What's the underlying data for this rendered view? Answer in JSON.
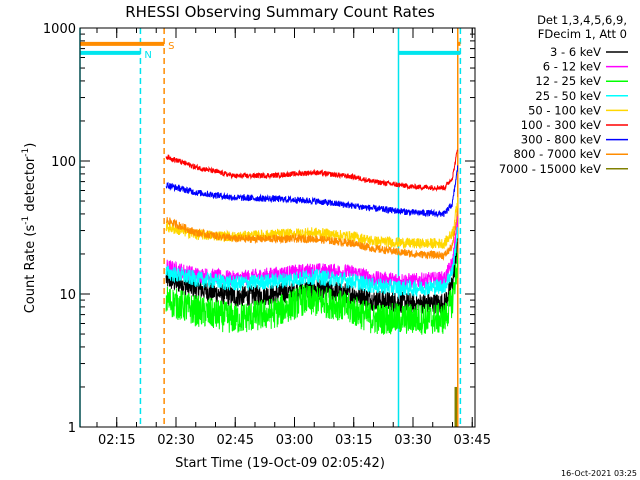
{
  "chart_data": {
    "type": "line",
    "title": "RHESSI Observing Summary Count Rates",
    "xlabel": "Start Time (19-Oct-09 02:05:42)",
    "ylabel": "Count Rate (s",
    "ylabel_exp": "-1",
    "ylabel_tail": " detector",
    "ylabel_close": ")",
    "yscale": "log",
    "ylim": [
      1,
      1000
    ],
    "xlim": [
      "02:05:42",
      "03:45:42"
    ],
    "x_ticks": [
      "02:15",
      "02:30",
      "02:45",
      "03:00",
      "03:15",
      "03:30",
      "03:45"
    ],
    "y_ticks": [
      "1",
      "10",
      "100",
      "1000"
    ],
    "legend_header": [
      "Det 1,3,4,5,6,9,",
      "FDecim 1, Att 0"
    ],
    "legend_position": "outside-right",
    "timestamp": "16-Oct-2021 03:25",
    "flags": [
      {
        "label": "N",
        "color": "#00e5ee",
        "start": "02:05:42",
        "end": "02:21:00",
        "level": 650
      },
      {
        "label": "S",
        "color": "#ff8c00",
        "start": "02:05:42",
        "end": "02:27:00",
        "level": 760
      },
      {
        "label": "",
        "color": "#00e5ee",
        "start": "03:26:20",
        "end": "03:42:00",
        "level": 650
      },
      {
        "label": "",
        "color": "#ff8c00",
        "start": "03:41:20",
        "end": "03:42:00",
        "level": 760
      }
    ],
    "markers": [
      {
        "time": "02:05:42",
        "color": "#00e5ee",
        "style": "solid"
      },
      {
        "time": "02:21:00",
        "color": "#00e5ee",
        "style": "dashed"
      },
      {
        "time": "02:27:00",
        "color": "#ff8c00",
        "style": "dashed"
      },
      {
        "time": "03:26:20",
        "color": "#00e5ee",
        "style": "solid"
      },
      {
        "time": "03:41:20",
        "color": "#ff8c00",
        "style": "solid"
      },
      {
        "time": "03:42:00",
        "color": "#00e5ee",
        "style": "dashed"
      }
    ],
    "series": [
      {
        "name": "3 - 6 keV",
        "color": "#000000",
        "times": [
          "02:27:30",
          "02:35",
          "02:45",
          "02:55",
          "03:05",
          "03:15",
          "03:20",
          "03:30",
          "03:38",
          "03:40",
          "03:41:20"
        ],
        "values": [
          13,
          11,
          9.5,
          10,
          11,
          10,
          9,
          8.5,
          8.5,
          12,
          25
        ],
        "noise": 0.08
      },
      {
        "name": "6 - 12 keV",
        "color": "#ff00ff",
        "times": [
          "02:27:30",
          "02:35",
          "02:45",
          "02:55",
          "03:05",
          "03:15",
          "03:20",
          "03:30",
          "03:38",
          "03:40",
          "03:41:20"
        ],
        "values": [
          16,
          14,
          13,
          14,
          15,
          14.5,
          13,
          12.5,
          13,
          17,
          35
        ],
        "noise": 0.06
      },
      {
        "name": "12 - 25 keV",
        "color": "#00ff00",
        "times": [
          "02:27:30",
          "02:35",
          "02:45",
          "02:55",
          "03:02",
          "03:10",
          "03:15",
          "03:20",
          "03:30",
          "03:38",
          "03:40",
          "03:41:20"
        ],
        "values": [
          9,
          7.5,
          6.5,
          7.2,
          9,
          8.5,
          7.5,
          6.5,
          6.5,
          6.5,
          9,
          18
        ],
        "noise": 0.12
      },
      {
        "name": "25 - 50 keV",
        "color": "#00ffff",
        "times": [
          "02:27:30",
          "02:35",
          "02:45",
          "02:55",
          "03:05",
          "03:15",
          "03:20",
          "03:30",
          "03:38",
          "03:40",
          "03:41:20"
        ],
        "values": [
          14.5,
          13,
          12,
          12.5,
          13.5,
          12.5,
          11.5,
          11,
          11.5,
          15,
          30
        ],
        "noise": 0.06
      },
      {
        "name": "50 - 100 keV",
        "color": "#ffd700",
        "times": [
          "02:27:30",
          "02:35",
          "02:45",
          "02:55",
          "03:05",
          "03:15",
          "03:20",
          "03:30",
          "03:38",
          "03:40",
          "03:41:20"
        ],
        "values": [
          32,
          28,
          27,
          28,
          29,
          27,
          25,
          24,
          24,
          29,
          50
        ],
        "noise": 0.04
      },
      {
        "name": "100 - 300 keV",
        "color": "#ff0000",
        "times": [
          "02:27:30",
          "02:35",
          "02:45",
          "02:55",
          "03:05",
          "03:15",
          "03:20",
          "03:30",
          "03:38",
          "03:40",
          "03:41:20"
        ],
        "values": [
          108,
          90,
          77,
          78,
          82,
          76,
          70,
          64,
          63,
          75,
          125
        ],
        "noise": 0.02
      },
      {
        "name": "300 - 800 keV",
        "color": "#0000ff",
        "times": [
          "02:27:30",
          "02:35",
          "02:45",
          "02:55",
          "03:05",
          "03:15",
          "03:20",
          "03:30",
          "03:38",
          "03:40",
          "03:41:20"
        ],
        "values": [
          66,
          58,
          53,
          52,
          50,
          46,
          44,
          41,
          40,
          48,
          90
        ],
        "noise": 0.025
      },
      {
        "name": "800 - 7000 keV",
        "color": "#ff8c00",
        "times": [
          "02:27:30",
          "02:35",
          "02:45",
          "02:55",
          "03:05",
          "03:15",
          "03:20",
          "03:30",
          "03:38",
          "03:40",
          "03:41:20"
        ],
        "values": [
          36,
          29,
          26,
          26,
          26,
          24,
          22,
          20,
          19.5,
          23,
          42
        ],
        "noise": 0.03
      },
      {
        "name": "7000 - 15000 keV",
        "color": "#808000",
        "times": [
          "03:40:50",
          "03:41:10"
        ],
        "values": [
          2.0,
          2.0
        ],
        "noise": 0
      }
    ]
  }
}
